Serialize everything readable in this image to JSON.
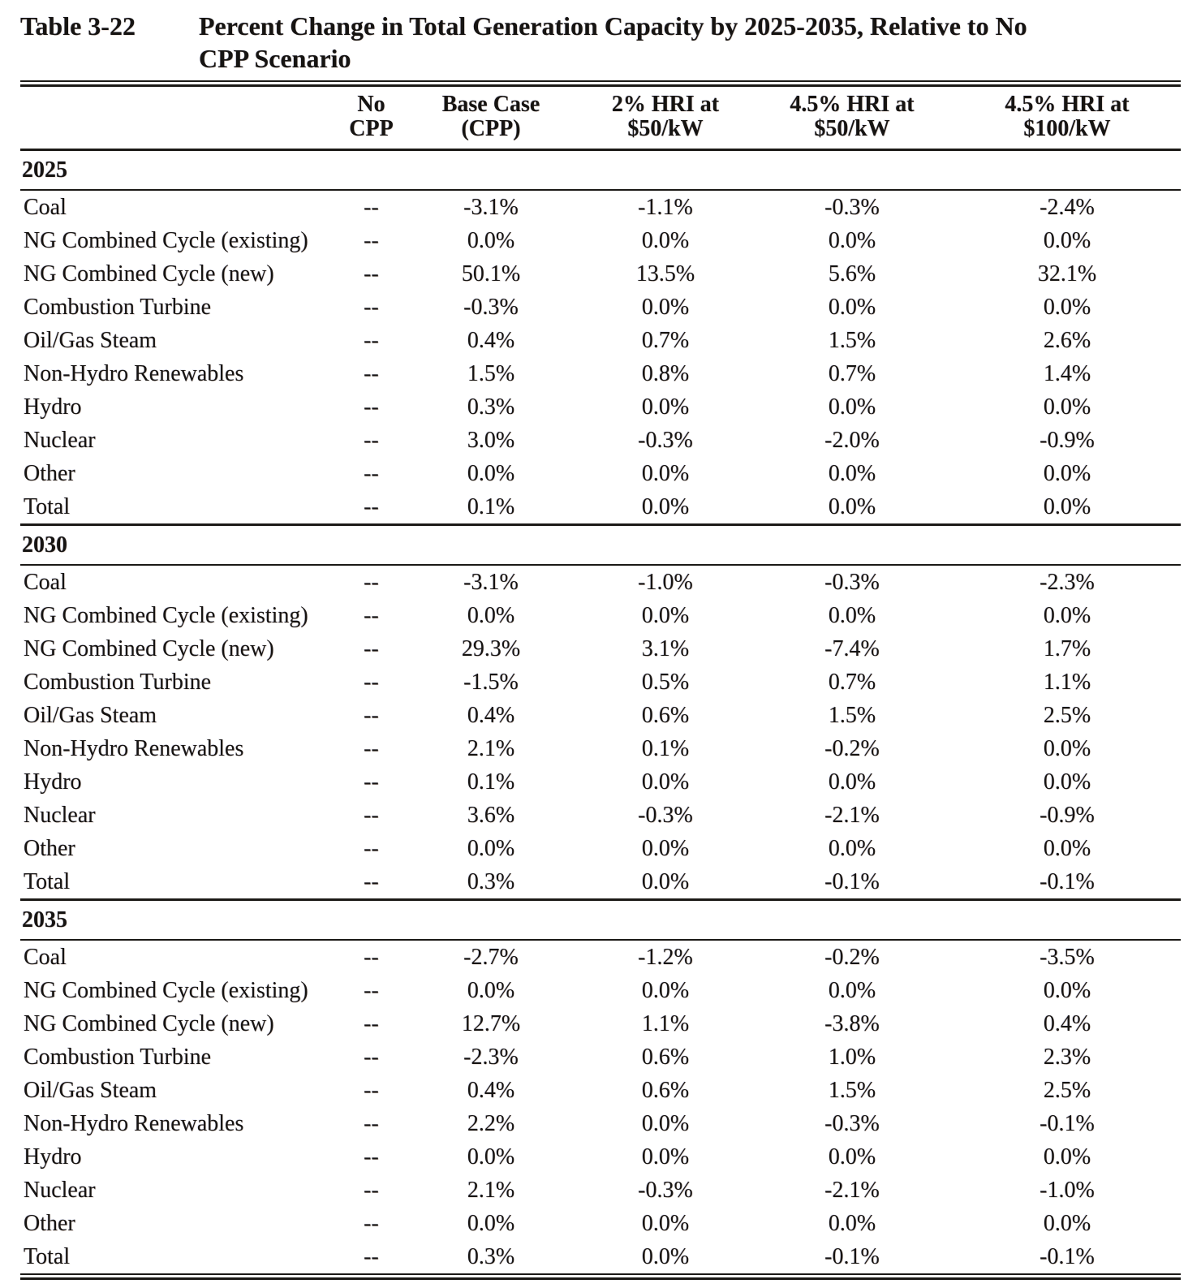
{
  "page": {
    "table_number": "Table 3-22",
    "title_line1": "Percent Change in Total Generation Capacity by 2025-2035, Relative to No",
    "title_line2": "CPP Scenario"
  },
  "table": {
    "columns": [
      {
        "line1": "No",
        "line2": "CPP"
      },
      {
        "line1": "Base Case",
        "line2": "(CPP)"
      },
      {
        "line1": "2% HRI at",
        "line2": "$50/kW"
      },
      {
        "line1": "4.5% HRI at",
        "line2": "$50/kW"
      },
      {
        "line1": "4.5% HRI at",
        "line2": "$100/kW"
      }
    ],
    "sections": [
      {
        "year": "2025",
        "rows": [
          {
            "label": "Coal",
            "values": [
              "--",
              "-3.1%",
              "-1.1%",
              "-0.3%",
              "-2.4%"
            ]
          },
          {
            "label": "NG Combined Cycle (existing)",
            "values": [
              "--",
              "0.0%",
              "0.0%",
              "0.0%",
              "0.0%"
            ]
          },
          {
            "label": "NG Combined Cycle (new)",
            "values": [
              "--",
              "50.1%",
              "13.5%",
              "5.6%",
              "32.1%"
            ]
          },
          {
            "label": "Combustion Turbine",
            "values": [
              "--",
              "-0.3%",
              "0.0%",
              "0.0%",
              "0.0%"
            ]
          },
          {
            "label": "Oil/Gas Steam",
            "values": [
              "--",
              "0.4%",
              "0.7%",
              "1.5%",
              "2.6%"
            ]
          },
          {
            "label": "Non-Hydro Renewables",
            "values": [
              "--",
              "1.5%",
              "0.8%",
              "0.7%",
              "1.4%"
            ]
          },
          {
            "label": "Hydro",
            "values": [
              "--",
              "0.3%",
              "0.0%",
              "0.0%",
              "0.0%"
            ]
          },
          {
            "label": "Nuclear",
            "values": [
              "--",
              "3.0%",
              "-0.3%",
              "-2.0%",
              "-0.9%"
            ]
          },
          {
            "label": "Other",
            "values": [
              "--",
              "0.0%",
              "0.0%",
              "0.0%",
              "0.0%"
            ]
          },
          {
            "label": "Total",
            "values": [
              "--",
              "0.1%",
              "0.0%",
              "0.0%",
              "0.0%"
            ]
          }
        ]
      },
      {
        "year": "2030",
        "rows": [
          {
            "label": "Coal",
            "values": [
              "--",
              "-3.1%",
              "-1.0%",
              "-0.3%",
              "-2.3%"
            ]
          },
          {
            "label": "NG Combined Cycle (existing)",
            "values": [
              "--",
              "0.0%",
              "0.0%",
              "0.0%",
              "0.0%"
            ]
          },
          {
            "label": "NG Combined Cycle (new)",
            "values": [
              "--",
              "29.3%",
              "3.1%",
              "-7.4%",
              "1.7%"
            ]
          },
          {
            "label": "Combustion Turbine",
            "values": [
              "--",
              "-1.5%",
              "0.5%",
              "0.7%",
              "1.1%"
            ]
          },
          {
            "label": "Oil/Gas Steam",
            "values": [
              "--",
              "0.4%",
              "0.6%",
              "1.5%",
              "2.5%"
            ]
          },
          {
            "label": "Non-Hydro Renewables",
            "values": [
              "--",
              "2.1%",
              "0.1%",
              "-0.2%",
              "0.0%"
            ]
          },
          {
            "label": "Hydro",
            "values": [
              "--",
              "0.1%",
              "0.0%",
              "0.0%",
              "0.0%"
            ]
          },
          {
            "label": "Nuclear",
            "values": [
              "--",
              "3.6%",
              "-0.3%",
              "-2.1%",
              "-0.9%"
            ]
          },
          {
            "label": "Other",
            "values": [
              "--",
              "0.0%",
              "0.0%",
              "0.0%",
              "0.0%"
            ]
          },
          {
            "label": "Total",
            "values": [
              "--",
              "0.3%",
              "0.0%",
              "-0.1%",
              "-0.1%"
            ]
          }
        ]
      },
      {
        "year": "2035",
        "rows": [
          {
            "label": "Coal",
            "values": [
              "--",
              "-2.7%",
              "-1.2%",
              "-0.2%",
              "-3.5%"
            ]
          },
          {
            "label": "NG Combined Cycle (existing)",
            "values": [
              "--",
              "0.0%",
              "0.0%",
              "0.0%",
              "0.0%"
            ]
          },
          {
            "label": "NG Combined Cycle (new)",
            "values": [
              "--",
              "12.7%",
              "1.1%",
              "-3.8%",
              "0.4%"
            ]
          },
          {
            "label": "Combustion Turbine",
            "values": [
              "--",
              "-2.3%",
              "0.6%",
              "1.0%",
              "2.3%"
            ]
          },
          {
            "label": "Oil/Gas Steam",
            "values": [
              "--",
              "0.4%",
              "0.6%",
              "1.5%",
              "2.5%"
            ]
          },
          {
            "label": "Non-Hydro Renewables",
            "values": [
              "--",
              "2.2%",
              "0.0%",
              "-0.3%",
              "-0.1%"
            ]
          },
          {
            "label": "Hydro",
            "values": [
              "--",
              "0.0%",
              "0.0%",
              "0.0%",
              "0.0%"
            ]
          },
          {
            "label": "Nuclear",
            "values": [
              "--",
              "2.1%",
              "-0.3%",
              "-2.1%",
              "-1.0%"
            ]
          },
          {
            "label": "Other",
            "values": [
              "--",
              "0.0%",
              "0.0%",
              "0.0%",
              "0.0%"
            ]
          },
          {
            "label": "Total",
            "values": [
              "--",
              "0.3%",
              "0.0%",
              "-0.1%",
              "-0.1%"
            ]
          }
        ]
      }
    ]
  }
}
